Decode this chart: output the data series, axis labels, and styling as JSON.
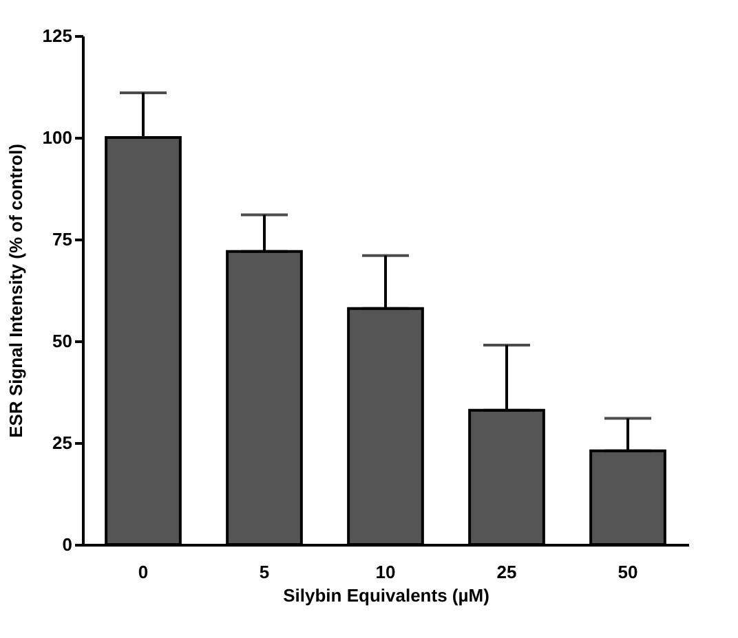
{
  "chart_data": {
    "type": "bar",
    "xlabel": "Silybin Equivalents (µM)",
    "ylabel": "ESR Signal Intensity (% of control)",
    "categories": [
      "0",
      "5",
      "10",
      "25",
      "50"
    ],
    "values": [
      100,
      72,
      58,
      33,
      23
    ],
    "errors": [
      [
        100,
        111
      ],
      [
        72,
        81
      ],
      [
        58,
        71
      ],
      [
        33,
        49
      ],
      [
        23,
        31
      ]
    ],
    "color": "#555555",
    "ylim": [
      0,
      125
    ],
    "yticks": [
      0,
      25,
      50,
      75,
      100,
      125
    ],
    "grid": false
  }
}
